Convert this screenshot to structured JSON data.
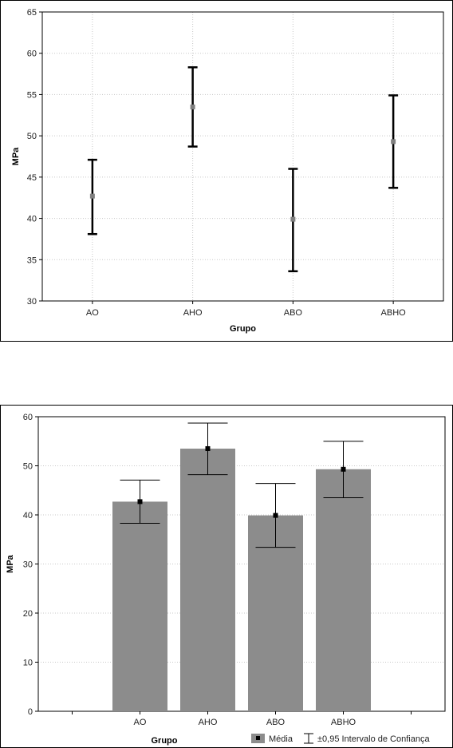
{
  "chart_data": [
    {
      "type": "scatter",
      "title": "",
      "xlabel": "Grupo",
      "ylabel": "MPa",
      "categories": [
        "AO",
        "AHO",
        "ABO",
        "ABHO"
      ],
      "series": [
        {
          "values": [
            42.7,
            53.5,
            39.9,
            49.3
          ],
          "lower": [
            38.1,
            48.7,
            33.6,
            43.7
          ],
          "upper": [
            47.1,
            58.3,
            46.0,
            54.9
          ]
        }
      ],
      "yticks": [
        "30",
        "35",
        "40",
        "45",
        "50",
        "55",
        "60",
        "65"
      ],
      "ylim": [
        30,
        65
      ],
      "grid": true,
      "point_color": "#808080",
      "errorbar_color": "#000000"
    },
    {
      "type": "bar",
      "title": "",
      "xlabel": "Grupo",
      "ylabel": "MPa",
      "categories": [
        "",
        "AO",
        "AHO",
        "ABO",
        "ABHO",
        ""
      ],
      "series": [
        {
          "name": "Média",
          "values": [
            null,
            42.7,
            53.5,
            39.9,
            49.3,
            null
          ],
          "lower": [
            null,
            38.3,
            48.2,
            33.4,
            43.5,
            null
          ],
          "upper": [
            null,
            47.1,
            58.7,
            46.4,
            55.0,
            null
          ]
        }
      ],
      "yticks": [
        "0",
        "10",
        "20",
        "30",
        "40",
        "50",
        "60"
      ],
      "ylim": [
        0,
        60
      ],
      "grid": true,
      "bar_color": "#8c8c8c",
      "legend": {
        "placement": "bottom-right",
        "mean_label": "Média",
        "ci_label": "±0,95 Intervalo de Confiança"
      }
    }
  ]
}
